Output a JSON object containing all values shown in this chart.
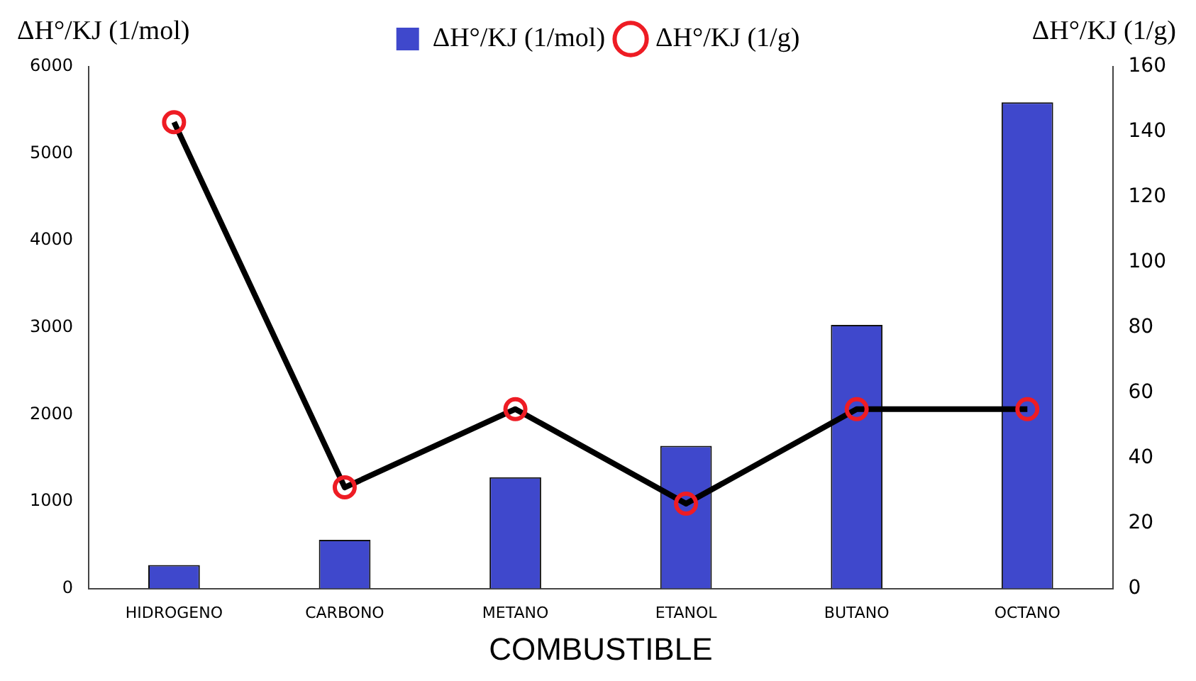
{
  "chart_data": {
    "type": "bar",
    "xlabel": "COMBUSTIBLE",
    "ylabel": "ΔH°/KJ (1/mol)",
    "y2label": "ΔH°/KJ (1/g)",
    "categories": [
      "HIDROGENO",
      "CARBONO",
      "METANO",
      "ETANOL",
      "BUTANO",
      "OCTANO"
    ],
    "series": [
      {
        "name": "ΔH°/KJ (1/mol)",
        "color": "#3f48cc",
        "values": [
          270,
          560,
          1280,
          1640,
          3030,
          5590
        ]
      },
      {
        "name": "ΔH°/KJ (1/g)",
        "type": "line",
        "axis": "y2",
        "color": "#ee1c24",
        "values": [
          143,
          31,
          55,
          26,
          55,
          55
        ]
      }
    ],
    "ylim": [
      0,
      6000
    ],
    "yticks": [
      0,
      1000,
      2000,
      3000,
      4000,
      5000,
      6000
    ],
    "y2lim": [
      0,
      160
    ],
    "y2ticks": [
      0,
      20,
      40,
      60,
      80,
      100,
      120,
      140,
      160
    ],
    "legend": "top",
    "marker": "circle",
    "line_style": "solid",
    "grid": false
  }
}
